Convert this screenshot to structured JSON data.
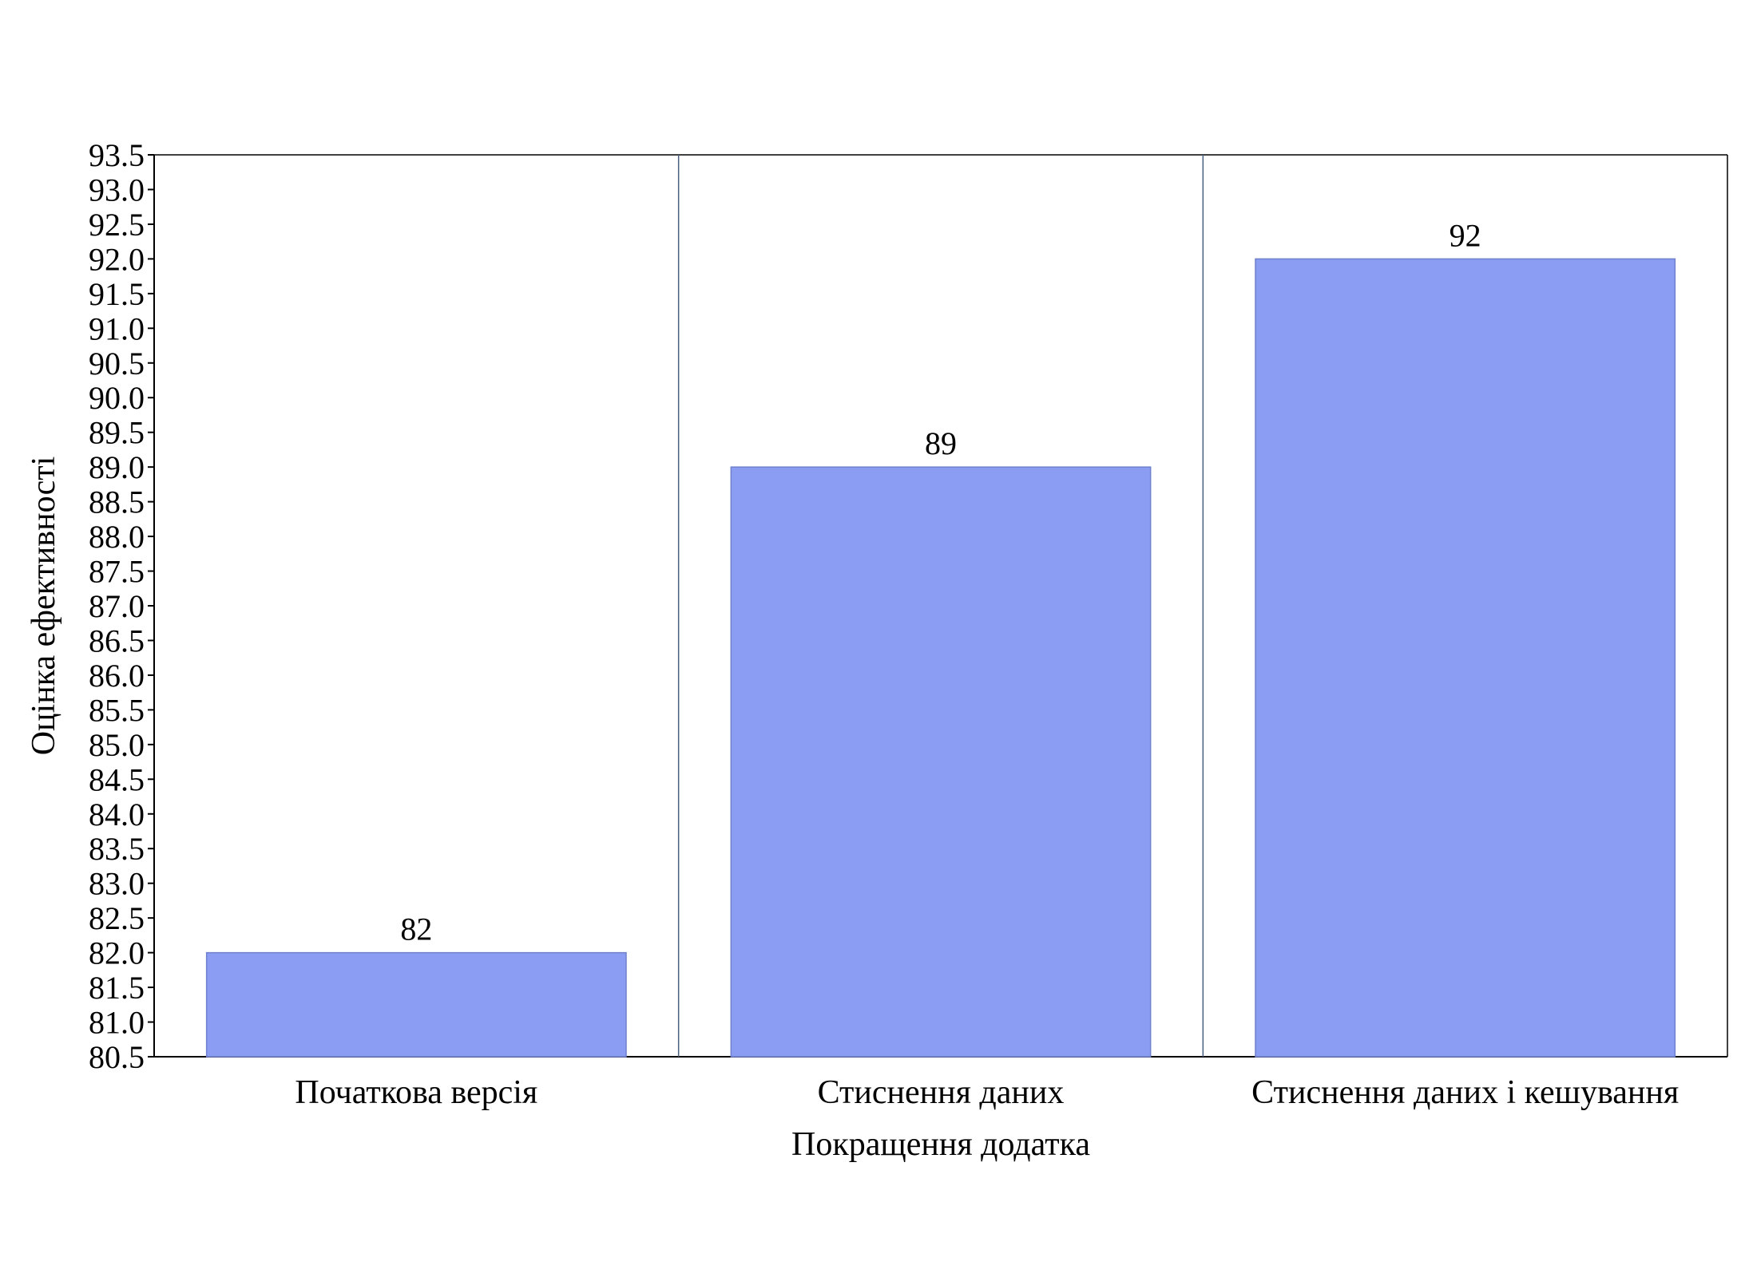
{
  "chart_data": {
    "type": "bar",
    "categories": [
      "Початкова версія",
      "Стиснення даних",
      "Стиснення даних і кешування"
    ],
    "values": [
      82,
      89,
      92
    ],
    "data_labels": [
      "82",
      "89",
      "92"
    ],
    "xlabel": "Покращення додатка",
    "ylabel": "Оцінка ефективності",
    "ylim": [
      80.5,
      93.5
    ],
    "yticks": [
      "80.5",
      "81.0",
      "81.5",
      "82.0",
      "82.5",
      "83.0",
      "83.5",
      "84.0",
      "84.5",
      "85.0",
      "85.5",
      "86.0",
      "86.5",
      "87.0",
      "87.5",
      "88.0",
      "88.5",
      "89.0",
      "89.5",
      "90.0",
      "90.5",
      "91.0",
      "91.5",
      "92.0",
      "92.5",
      "93.0",
      "93.5"
    ],
    "grid": false,
    "bar_color": "#8a9df2",
    "bar_edge_color": "#6f80cc",
    "separator_color": "#4a6080"
  }
}
